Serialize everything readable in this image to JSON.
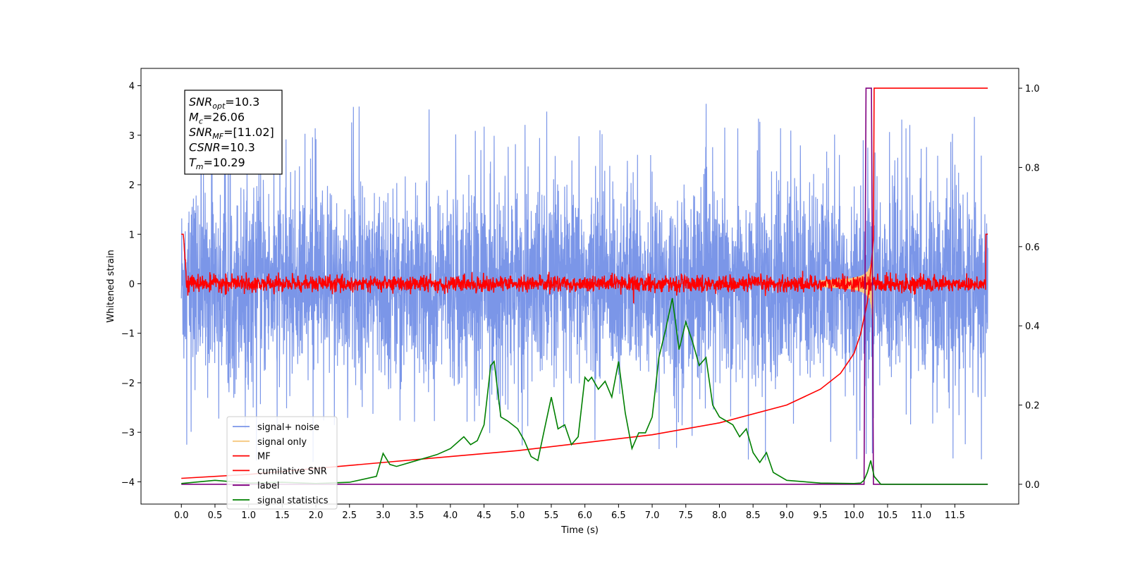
{
  "chart_data": {
    "type": "line",
    "xlabel": "Time (s)",
    "ylabel": "Whitened strain",
    "xlim": [
      -0.6,
      12.45
    ],
    "ylim_left": [
      -4.45,
      4.35
    ],
    "ylim_right": [
      -0.05,
      1.05
    ],
    "x_ticks": [
      "0.0",
      "0.5",
      "1.0",
      "1.5",
      "2.0",
      "2.5",
      "3.0",
      "3.5",
      "4.0",
      "4.5",
      "5.0",
      "5.5",
      "6.0",
      "6.5",
      "7.0",
      "7.5",
      "8.0",
      "8.5",
      "9.0",
      "9.5",
      "10.0",
      "10.5",
      "11.0",
      "11.5"
    ],
    "y_left_ticks": [
      "4",
      "3",
      "2",
      "1",
      "0",
      "−1",
      "−2",
      "−3",
      "−4"
    ],
    "y_left_tick_values": [
      4,
      3,
      2,
      1,
      0,
      -1,
      -2,
      -3,
      -4
    ],
    "y_right_ticks": [
      "1.0",
      "0.8",
      "0.6",
      "0.4",
      "0.2",
      "0.0"
    ],
    "y_right_tick_values": [
      1.0,
      0.8,
      0.6,
      0.4,
      0.2,
      0.0
    ],
    "legend_position": "lower-left",
    "grid": false,
    "info_box": {
      "lines": [
        {
          "base": "SNR",
          "sub": "opt",
          "rest": "=10.3"
        },
        {
          "base": "M",
          "sub": "c",
          "rest": "=26.06"
        },
        {
          "base": "SNR",
          "sub": "MF",
          "rest": "=[11.02]"
        },
        {
          "base": "CSNR",
          "sub": "",
          "rest": "=10.3"
        },
        {
          "base": "T",
          "sub": "m",
          "rest": "=10.29"
        }
      ]
    },
    "series": [
      {
        "name": "signal+ noise",
        "color": "#7b96e8",
        "axis": "left",
        "description": "noise band approx ±2.5 with spikes to ±3.8",
        "envelope": [
          -2.5,
          3.2
        ]
      },
      {
        "name": "signal only",
        "color": "#f5c77e",
        "axis": "left",
        "chirp_peak_time": 10.29,
        "peak_amplitude": 1.0
      },
      {
        "name": "MF",
        "color": "#ff0000",
        "axis": "left",
        "baseline": 0.0,
        "noise_amplitude": 0.15,
        "edge_value": 1.0
      },
      {
        "name": "cumilative SNR",
        "color": "#ff0000",
        "axis": "right",
        "x": [
          0.0,
          1.0,
          2.0,
          3.0,
          4.0,
          5.0,
          6.0,
          7.0,
          8.0,
          9.0,
          9.5,
          9.8,
          10.0,
          10.1,
          10.2,
          10.25,
          10.29,
          10.3,
          11.0,
          11.99
        ],
        "y": [
          0.015,
          0.025,
          0.04,
          0.055,
          0.07,
          0.085,
          0.105,
          0.125,
          0.155,
          0.2,
          0.24,
          0.28,
          0.33,
          0.38,
          0.46,
          0.54,
          0.62,
          1.0,
          1.0,
          1.0
        ]
      },
      {
        "name": "label",
        "color": "#800080",
        "axis": "right",
        "x": [
          0.0,
          10.15,
          10.18,
          10.26,
          10.29,
          11.99
        ],
        "y": [
          0.0,
          0.0,
          1.0,
          1.0,
          0.0,
          0.0
        ]
      },
      {
        "name": "signal statistics",
        "color": "#008000",
        "axis": "right",
        "x": [
          0.0,
          0.5,
          1.0,
          1.5,
          2.0,
          2.5,
          2.9,
          3.0,
          3.1,
          3.2,
          3.5,
          3.7,
          3.8,
          4.0,
          4.2,
          4.3,
          4.4,
          4.5,
          4.6,
          4.65,
          4.75,
          4.85,
          5.0,
          5.1,
          5.2,
          5.3,
          5.4,
          5.5,
          5.6,
          5.7,
          5.8,
          5.9,
          6.0,
          6.05,
          6.1,
          6.2,
          6.3,
          6.4,
          6.5,
          6.6,
          6.7,
          6.8,
          6.9,
          7.0,
          7.1,
          7.2,
          7.3,
          7.4,
          7.5,
          7.6,
          7.7,
          7.8,
          7.9,
          8.0,
          8.1,
          8.2,
          8.3,
          8.4,
          8.5,
          8.6,
          8.7,
          8.8,
          9.0,
          9.5,
          10.0,
          10.1,
          10.15,
          10.2,
          10.25,
          10.3,
          10.4,
          11.99
        ],
        "y": [
          0.002,
          0.01,
          0.003,
          0.005,
          0.002,
          0.005,
          0.02,
          0.078,
          0.05,
          0.045,
          0.06,
          0.07,
          0.075,
          0.09,
          0.12,
          0.1,
          0.11,
          0.15,
          0.3,
          0.31,
          0.17,
          0.16,
          0.14,
          0.11,
          0.07,
          0.06,
          0.14,
          0.22,
          0.14,
          0.15,
          0.1,
          0.12,
          0.27,
          0.26,
          0.27,
          0.24,
          0.26,
          0.22,
          0.31,
          0.18,
          0.09,
          0.13,
          0.13,
          0.17,
          0.32,
          0.39,
          0.47,
          0.34,
          0.41,
          0.36,
          0.3,
          0.32,
          0.2,
          0.17,
          0.16,
          0.15,
          0.12,
          0.14,
          0.08,
          0.055,
          0.08,
          0.03,
          0.01,
          0.003,
          0.002,
          0.003,
          0.01,
          0.03,
          0.06,
          0.02,
          0.0,
          0.0
        ]
      }
    ]
  }
}
